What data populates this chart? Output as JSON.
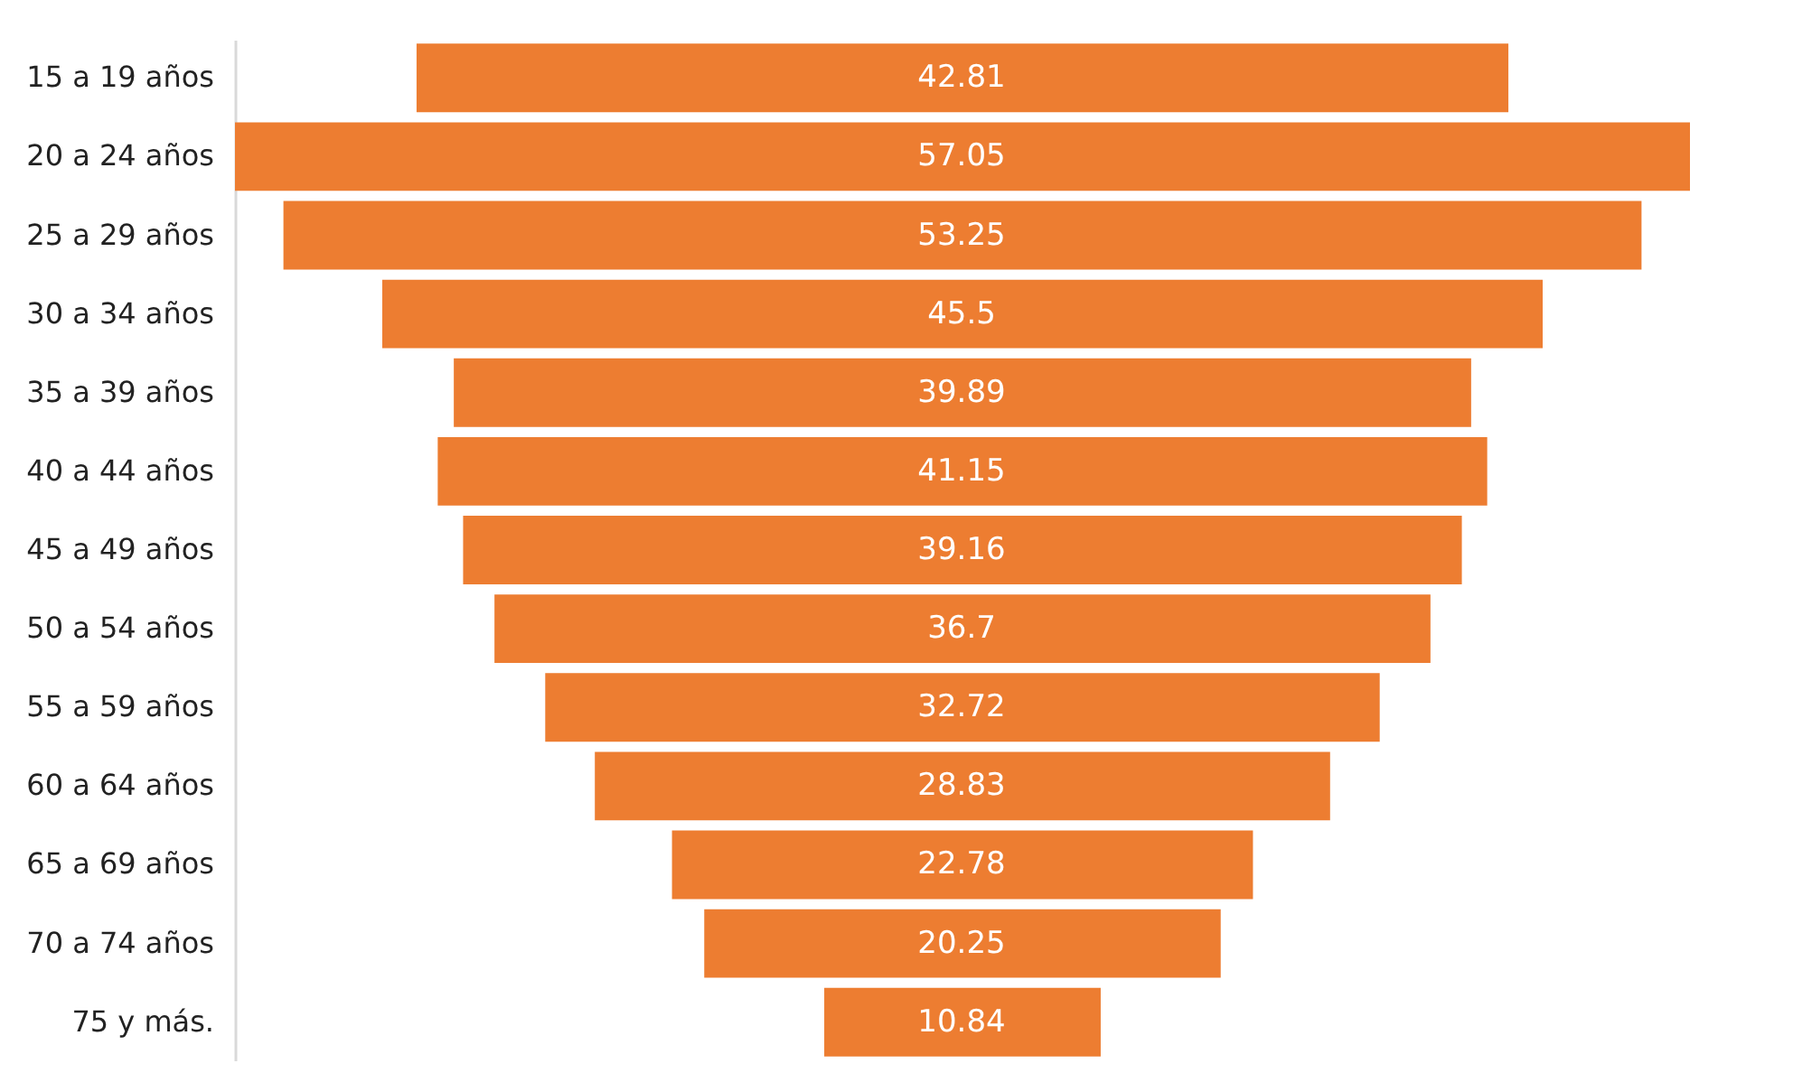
{
  "chart_data": {
    "type": "other",
    "categories": [
      "15 a 19 años",
      "20 a 24 años",
      "25 a 29 años",
      "30 a 34 años",
      "35 a 39 años",
      "40 a 44 años",
      "45 a 49 años",
      "50 a 54 años",
      "55 a 59 años",
      "60 a 64 años",
      "65 a 69 años",
      "70 a 74 años",
      "75 y más."
    ],
    "values": [
      42.81,
      57.05,
      53.25,
      45.5,
      39.89,
      41.15,
      39.16,
      36.7,
      32.72,
      28.83,
      22.78,
      20.25,
      10.84
    ],
    "color": "#ed7d31",
    "data_labels": true
  }
}
